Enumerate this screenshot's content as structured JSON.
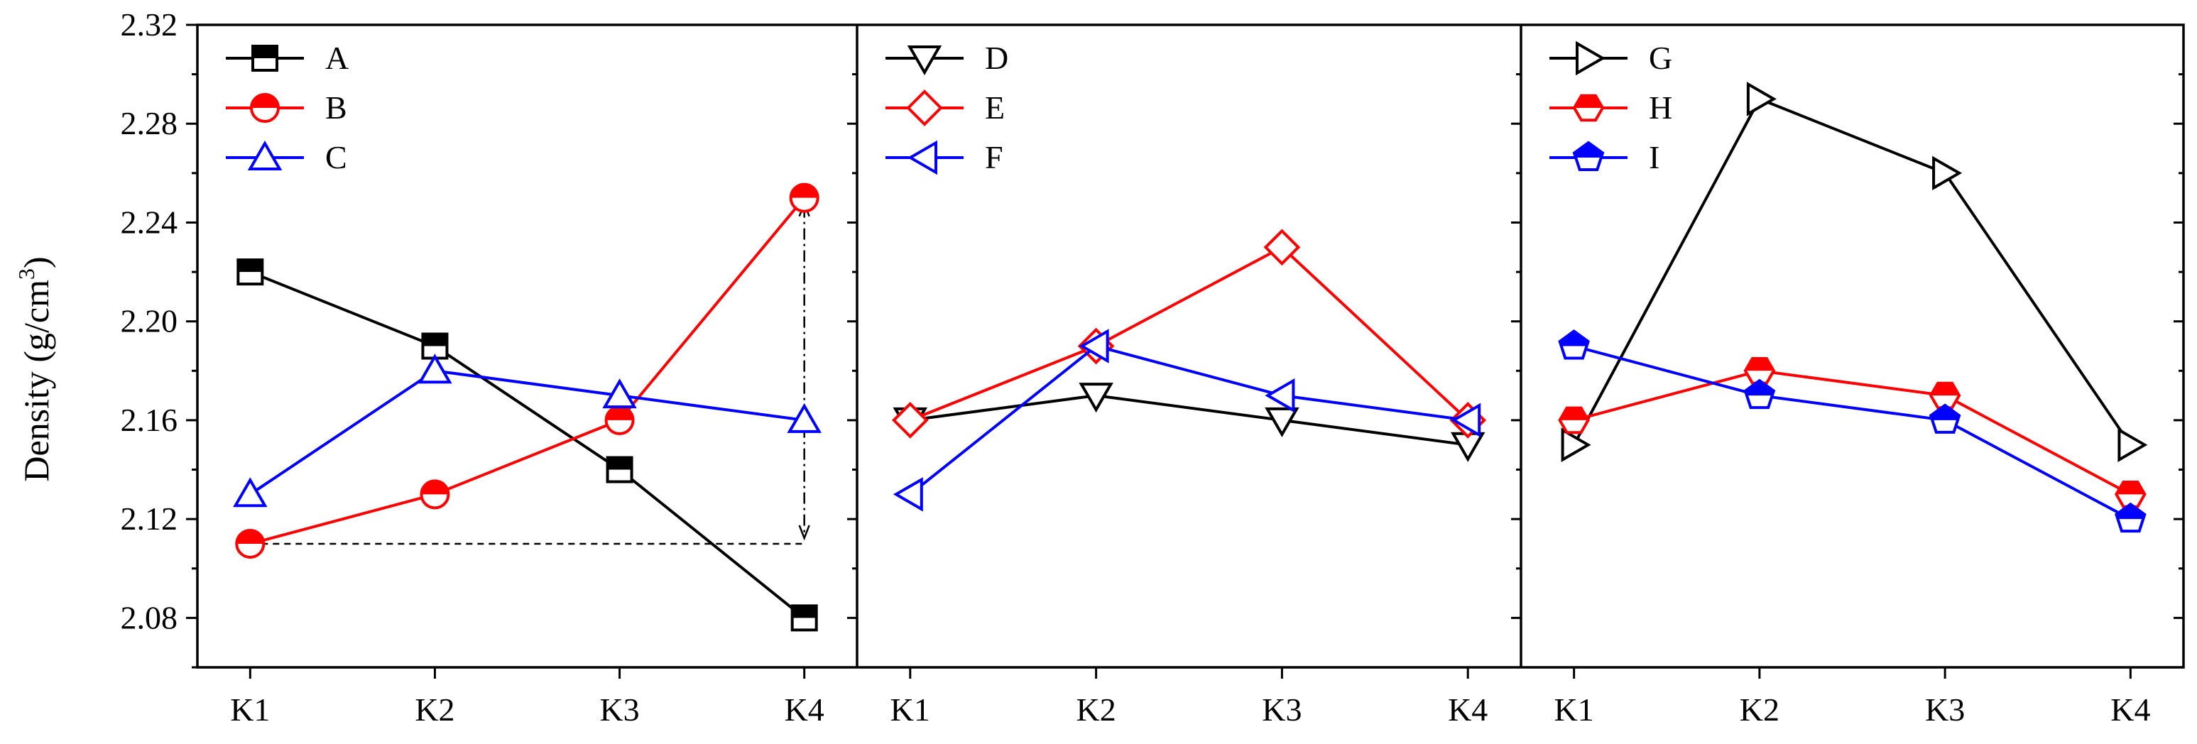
{
  "chart_data": {
    "type": "line",
    "ylabel": "Density (g/cm",
    "ylabel_sup": "3",
    "ylabel_close": ")",
    "ylim": [
      2.06,
      2.32
    ],
    "yticks": [
      "2.08",
      "2.12",
      "2.16",
      "2.20",
      "2.24",
      "2.28",
      "2.32"
    ],
    "categories": [
      "K1",
      "K2",
      "K3",
      "K4"
    ],
    "grid": false,
    "legend_position": "top-left",
    "panels": [
      {
        "series": [
          {
            "name": "A",
            "color": "#000000",
            "marker": "square",
            "values": [
              2.22,
              2.19,
              2.14,
              2.08
            ]
          },
          {
            "name": "B",
            "color": "#ff0000",
            "marker": "circle",
            "values": [
              2.11,
              2.13,
              2.16,
              2.25
            ]
          },
          {
            "name": "C",
            "color": "#0000ff",
            "marker": "triangle-up",
            "values": [
              2.13,
              2.18,
              2.17,
              2.16
            ]
          }
        ],
        "annotation": {
          "type": "range-arrow",
          "from_value": 2.11,
          "to_value": 2.25,
          "from_category": "K1",
          "at_category": "K4"
        }
      },
      {
        "series": [
          {
            "name": "D",
            "color": "#000000",
            "marker": "triangle-down",
            "values": [
              2.16,
              2.17,
              2.16,
              2.15
            ]
          },
          {
            "name": "E",
            "color": "#ff0000",
            "marker": "diamond",
            "values": [
              2.16,
              2.19,
              2.23,
              2.16
            ]
          },
          {
            "name": "F",
            "color": "#0000ff",
            "marker": "triangle-left",
            "values": [
              2.13,
              2.19,
              2.17,
              2.16
            ]
          }
        ]
      },
      {
        "series": [
          {
            "name": "G",
            "color": "#000000",
            "marker": "triangle-right",
            "values": [
              2.15,
              2.29,
              2.26,
              2.15
            ]
          },
          {
            "name": "H",
            "color": "#ff0000",
            "marker": "hexagon",
            "values": [
              2.16,
              2.18,
              2.17,
              2.13
            ]
          },
          {
            "name": "I",
            "color": "#0000ff",
            "marker": "pentagon",
            "values": [
              2.19,
              2.17,
              2.16,
              2.12
            ]
          }
        ]
      }
    ]
  }
}
